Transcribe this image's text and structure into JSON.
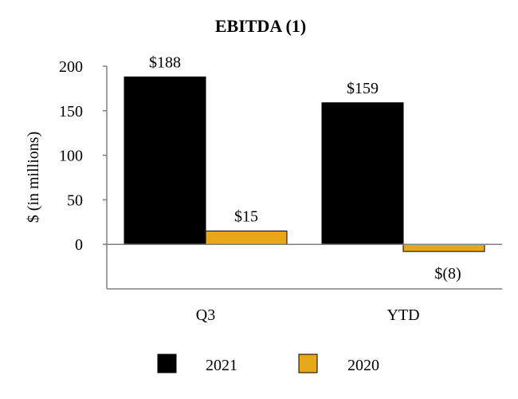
{
  "chart_data": {
    "type": "bar",
    "title": "EBITDA (1)",
    "ylabel": "$ (in millions)",
    "xlabel": "",
    "categories": [
      "Q3",
      "YTD"
    ],
    "ylim": [
      -50,
      200
    ],
    "yticks": [
      200,
      150,
      100,
      50,
      0
    ],
    "ytick_labels": [
      "200",
      "150",
      "100",
      "50",
      "0"
    ],
    "grid": false,
    "legend_position": "bottom",
    "series": [
      {
        "name": "2021",
        "color": "#000000",
        "values": [
          188,
          159
        ],
        "labels": [
          "$188",
          "$159"
        ]
      },
      {
        "name": "2020",
        "color": "#E6A817",
        "values": [
          15,
          -8
        ],
        "labels": [
          "$15",
          "$(8)"
        ]
      }
    ]
  }
}
